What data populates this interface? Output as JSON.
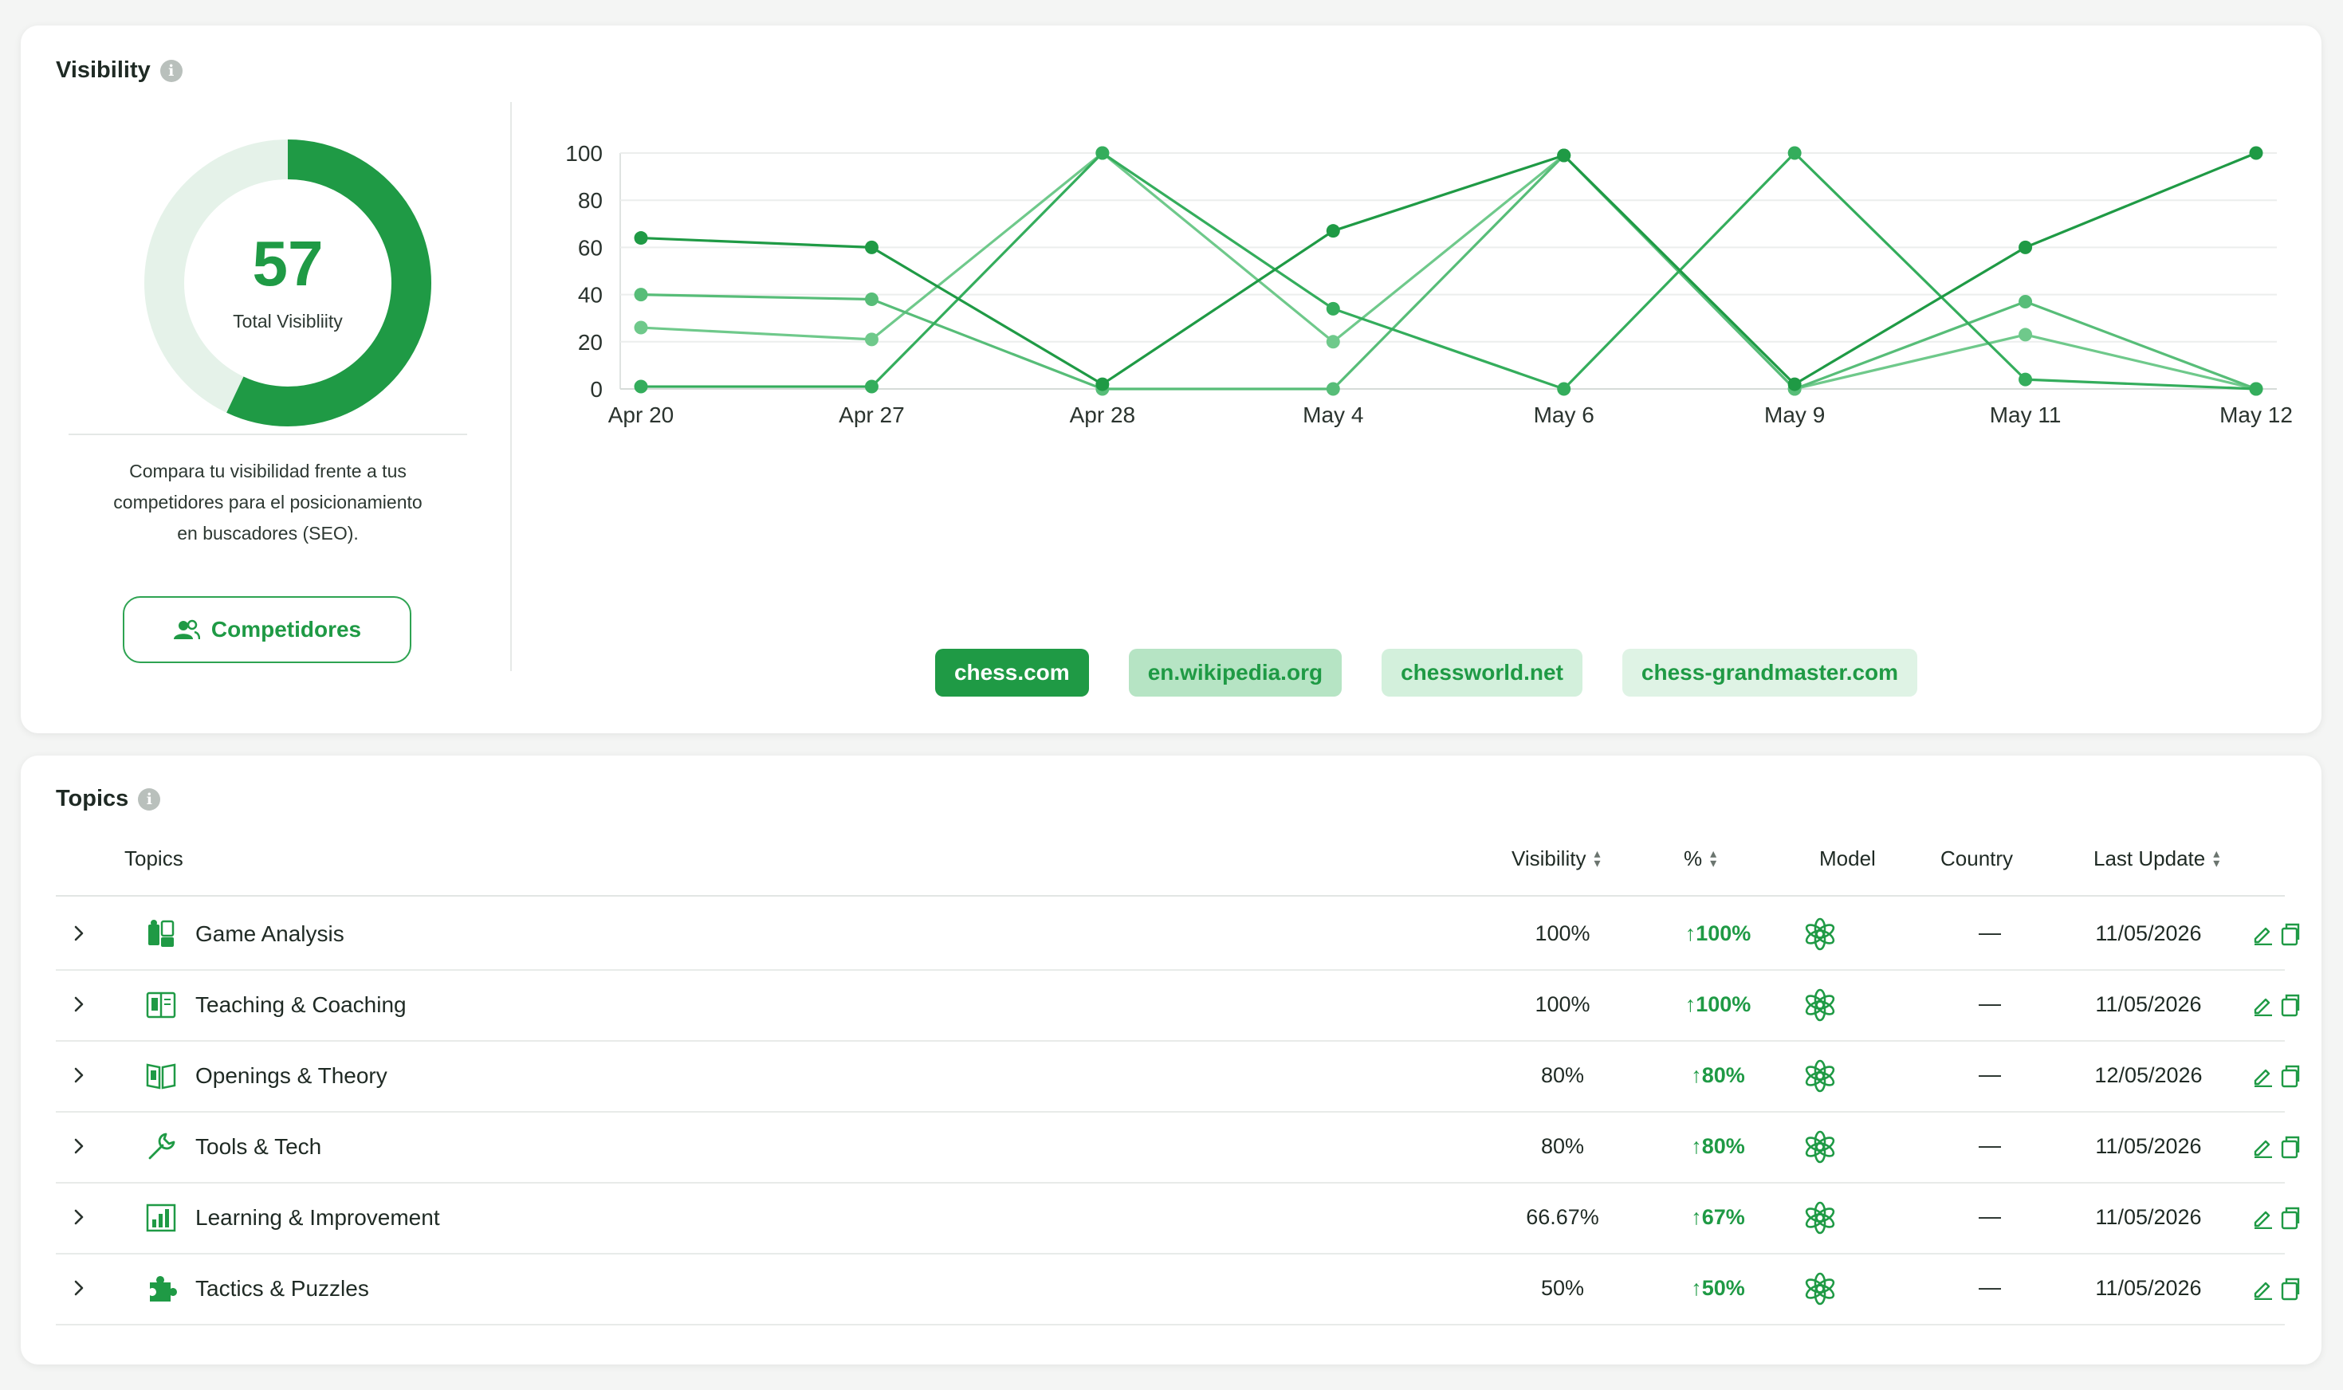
{
  "visibility": {
    "title": "Visibility",
    "info_label": "i",
    "total_value": "57",
    "total_fraction": 0.57,
    "total_caption": "Total Visibliity",
    "description_lines": [
      "Compara tu visibilidad frente a tus",
      "competidores para el posicionamiento",
      "en buscadores (SEO)."
    ],
    "competitors_button": "Competidores"
  },
  "chart_data": {
    "type": "line",
    "categories": [
      "Apr 20",
      "Apr 27",
      "Apr 28",
      "May 4",
      "May 6",
      "May 9",
      "May 11",
      "May 12"
    ],
    "ylim": [
      0,
      100
    ],
    "yticks": [
      "0",
      "20",
      "40",
      "60",
      "80",
      "100"
    ],
    "grid": true,
    "legend_position": "bottom",
    "series": [
      {
        "name": "chess.com",
        "color": "#1f9a45",
        "values": [
          64,
          60,
          2,
          67,
          99,
          2,
          60,
          100
        ]
      },
      {
        "name": "en.wikipedia.org",
        "color": "#34ad5c",
        "values": [
          1,
          1,
          100,
          34,
          0,
          100,
          4,
          0
        ]
      },
      {
        "name": "chessworld.net",
        "color": "#57bd78",
        "values": [
          40,
          38,
          0,
          0,
          99,
          0,
          37,
          0
        ]
      },
      {
        "name": "chess-grandmaster.com",
        "color": "#6fc98b",
        "values": [
          26,
          21,
          100,
          20,
          99,
          0,
          23,
          0
        ]
      }
    ]
  },
  "legend_styles": [
    {
      "bg": "#1f9a45",
      "fg": "#ffffff"
    },
    {
      "bg": "#b6e4c4",
      "fg": "#1f9a45"
    },
    {
      "bg": "#d3f0dc",
      "fg": "#1f9a45"
    },
    {
      "bg": "#dff3e5",
      "fg": "#1f9a45"
    }
  ],
  "topics": {
    "title": "Topics",
    "info_label": "i",
    "columns": {
      "topics": "Topics",
      "visibility": "Visibility",
      "pct": "%",
      "model": "Model",
      "country": "Country",
      "last_update": "Last Update"
    },
    "rows": [
      {
        "name": "Game Analysis",
        "icon": "analysis-icon",
        "visibility": "100%",
        "pct": "↑100%",
        "country": "—",
        "date": "11/05/2026"
      },
      {
        "name": "Teaching & Coaching",
        "icon": "book-icon",
        "visibility": "100%",
        "pct": "↑100%",
        "country": "—",
        "date": "11/05/2026"
      },
      {
        "name": "Openings & Theory",
        "icon": "open-book-icon",
        "visibility": "80%",
        "pct": "↑80%",
        "country": "—",
        "date": "12/05/2026"
      },
      {
        "name": "Tools & Tech",
        "icon": "wrench-icon",
        "visibility": "80%",
        "pct": "↑80%",
        "country": "—",
        "date": "11/05/2026"
      },
      {
        "name": "Learning & Improvement",
        "icon": "bar-chart-icon",
        "visibility": "66.67%",
        "pct": "↑67%",
        "country": "—",
        "date": "11/05/2026"
      },
      {
        "name": "Tactics & Puzzles",
        "icon": "puzzle-icon",
        "visibility": "50%",
        "pct": "↑50%",
        "country": "—",
        "date": "11/05/2026"
      }
    ]
  }
}
